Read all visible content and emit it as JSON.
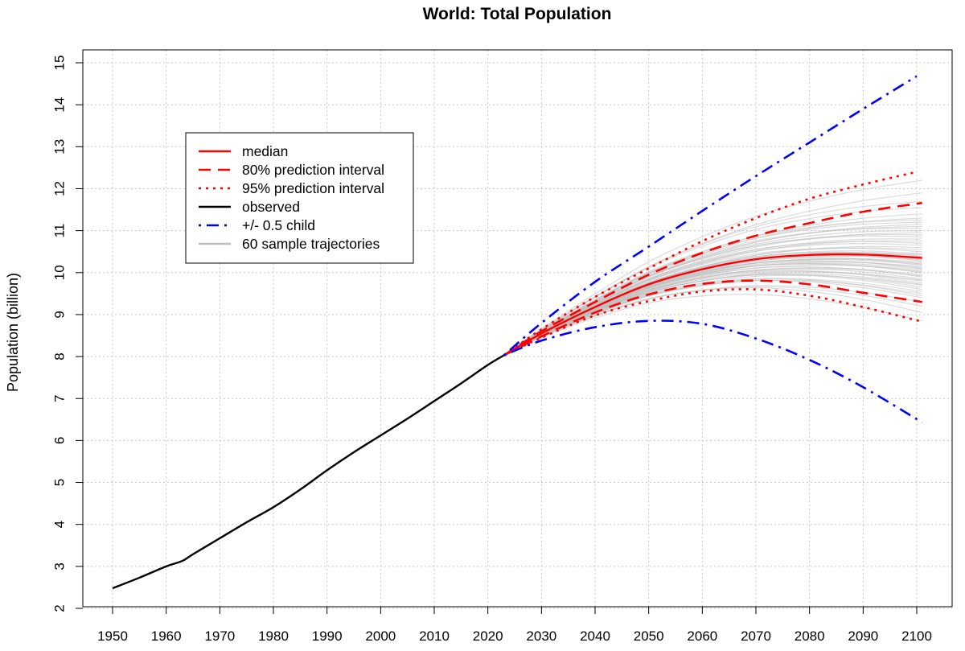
{
  "chart_data": {
    "type": "line",
    "title": "World: Total Population",
    "xlabel": "",
    "ylabel": "Population (billion)",
    "xlim": [
      1947,
      2104
    ],
    "ylim": [
      2,
      15.2
    ],
    "x_ticks": [
      1950,
      1960,
      1970,
      1980,
      1990,
      2000,
      2010,
      2020,
      2030,
      2040,
      2050,
      2060,
      2070,
      2080,
      2090,
      2100
    ],
    "y_ticks": [
      2,
      3,
      4,
      5,
      6,
      7,
      8,
      9,
      10,
      11,
      12,
      13,
      14,
      15
    ],
    "grid": true,
    "legend": {
      "placement": "top-left",
      "entries": [
        {
          "label": "median",
          "color": "#ff0000",
          "style": "solid"
        },
        {
          "label": "80% prediction interval",
          "color": "#ff0000",
          "style": "dashed"
        },
        {
          "label": "95% prediction interval",
          "color": "#ff0000",
          "style": "dotted"
        },
        {
          "label": "observed",
          "color": "#000000",
          "style": "solid"
        },
        {
          "label": "+/- 0.5 child",
          "color": "#0000ff",
          "style": "dotdash"
        },
        {
          "label": "60 sample trajectories",
          "color": "#bebebe",
          "style": "solid"
        }
      ]
    },
    "series": [
      {
        "name": "observed",
        "color": "#000000",
        "style": "solid",
        "x": [
          1950,
          1955,
          1960,
          1963,
          1965,
          1970,
          1975,
          1980,
          1985,
          1990,
          1995,
          2000,
          2005,
          2010,
          2015,
          2020,
          2023
        ],
        "y": [
          2.48,
          2.73,
          3.0,
          3.13,
          3.29,
          3.67,
          4.05,
          4.41,
          4.83,
          5.29,
          5.72,
          6.12,
          6.52,
          6.94,
          7.36,
          7.8,
          8.03
        ]
      },
      {
        "name": "median",
        "color": "#ff0000",
        "style": "solid",
        "x": [
          2023,
          2030,
          2040,
          2050,
          2060,
          2070,
          2080,
          2090,
          2101
        ],
        "y": [
          8.03,
          8.55,
          9.18,
          9.72,
          10.08,
          10.32,
          10.42,
          10.43,
          10.35
        ]
      },
      {
        "name": "80% prediction interval (upper)",
        "color": "#ff0000",
        "style": "dashed",
        "x": [
          2023,
          2030,
          2040,
          2050,
          2060,
          2070,
          2080,
          2090,
          2101
        ],
        "y": [
          8.03,
          8.6,
          9.3,
          9.95,
          10.47,
          10.88,
          11.18,
          11.45,
          11.66
        ]
      },
      {
        "name": "80% prediction interval (lower)",
        "color": "#ff0000",
        "style": "dashed",
        "x": [
          2023,
          2030,
          2040,
          2050,
          2060,
          2070,
          2080,
          2090,
          2101
        ],
        "y": [
          8.03,
          8.48,
          9.05,
          9.48,
          9.73,
          9.81,
          9.72,
          9.52,
          9.3
        ]
      },
      {
        "name": "95% prediction interval (upper)",
        "color": "#ff0000",
        "style": "dotted",
        "x": [
          2023,
          2030,
          2040,
          2050,
          2060,
          2070,
          2080,
          2090,
          2100
        ],
        "y": [
          8.03,
          8.65,
          9.42,
          10.1,
          10.75,
          11.3,
          11.76,
          12.1,
          12.4
        ]
      },
      {
        "name": "95% prediction interval (lower)",
        "color": "#ff0000",
        "style": "dotted",
        "x": [
          2023,
          2030,
          2040,
          2050,
          2060,
          2070,
          2080,
          2090,
          2101
        ],
        "y": [
          8.03,
          8.45,
          8.98,
          9.32,
          9.55,
          9.6,
          9.45,
          9.18,
          8.83
        ]
      },
      {
        "name": "+/- 0.5 child (upper)",
        "color": "#0000ff",
        "style": "dotdash",
        "x": [
          2023,
          2030,
          2040,
          2050,
          2060,
          2070,
          2080,
          2090,
          2100
        ],
        "y": [
          8.03,
          8.8,
          9.78,
          10.62,
          11.47,
          12.3,
          13.1,
          13.9,
          14.68
        ]
      },
      {
        "name": "+/- 0.5 child (lower)",
        "color": "#0000ff",
        "style": "dotdash",
        "x": [
          2023,
          2030,
          2040,
          2050,
          2060,
          2070,
          2080,
          2090,
          2101
        ],
        "y": [
          8.03,
          8.38,
          8.7,
          8.85,
          8.78,
          8.43,
          7.92,
          7.27,
          6.43
        ]
      }
    ],
    "trajectories": {
      "count": 60,
      "color": "#bebebe",
      "x": [
        2023,
        2030,
        2040,
        2050,
        2060,
        2070,
        2080,
        2090,
        2101
      ],
      "end_values": [
        8.85,
        9.05,
        9.2,
        9.3,
        9.4,
        9.45,
        9.5,
        9.55,
        9.6,
        9.65,
        9.7,
        9.72,
        9.75,
        9.8,
        9.82,
        9.85,
        9.9,
        9.92,
        9.95,
        10.0,
        10.02,
        10.05,
        10.08,
        10.1,
        10.12,
        10.15,
        10.18,
        10.2,
        10.22,
        10.25,
        10.28,
        10.3,
        10.33,
        10.35,
        10.38,
        10.4,
        10.43,
        10.45,
        10.5,
        10.55,
        10.6,
        10.65,
        10.7,
        10.75,
        10.8,
        10.85,
        10.9,
        10.95,
        11.0,
        11.05,
        11.1,
        11.15,
        11.2,
        11.25,
        11.3,
        11.4,
        11.55,
        11.7,
        11.9,
        12.2
      ]
    }
  }
}
